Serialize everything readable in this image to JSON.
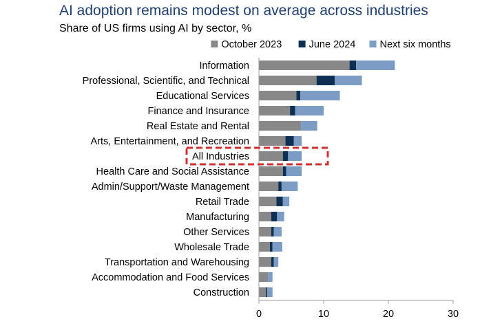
{
  "header": {
    "title": "AI adoption remains modest on average across industries",
    "subtitle": "Share of US firms using AI by sector, %"
  },
  "colors": {
    "title": "#1f3f6e",
    "october_2023": "#888888",
    "june_2024": "#0d2f52",
    "next_six_months": "#7b9dc4",
    "highlight_box": "#d12e2e",
    "axis": "#999999"
  },
  "chart_data": {
    "type": "bar",
    "orientation": "horizontal",
    "stacked": true,
    "title": "AI adoption remains modest on average across industries",
    "subtitle": "Share of US firms using AI by sector, %",
    "xlabel": "",
    "ylabel": "",
    "xlim": [
      0,
      30
    ],
    "xticks": [
      0,
      10,
      20,
      30
    ],
    "grid": false,
    "legend_position": "top-right",
    "highlighted_category": "All Industries",
    "categories": [
      "Information",
      "Professional, Scientific, and Technical",
      "Educational Services",
      "Finance and Insurance",
      "Real Estate and Rental",
      "Arts, Entertainment, and Recreation",
      "All Industries",
      "Health Care and Social Assistance",
      "Admin/Support/Waste Management",
      "Retail Trade",
      "Manufacturing",
      "Other Services",
      "Wholesale Trade",
      "Transportation and Warehousing",
      "Accommodation and Food Services",
      "Construction"
    ],
    "series": [
      {
        "name": "October 2023",
        "color": "#888888",
        "values": [
          14.0,
          8.9,
          5.8,
          4.8,
          6.5,
          4.1,
          3.7,
          3.7,
          3.0,
          2.7,
          1.9,
          1.9,
          1.7,
          1.9,
          1.4,
          1.1
        ]
      },
      {
        "name": "June 2024",
        "color": "#0d2f52",
        "values": [
          1.0,
          2.8,
          0.6,
          0.8,
          0.0,
          1.3,
          0.8,
          0.5,
          0.5,
          1.0,
          0.9,
          0.4,
          0.4,
          0.4,
          0.0,
          0.2
        ]
      },
      {
        "name": "Next six months",
        "color": "#7b9dc4",
        "values": [
          6.0,
          4.2,
          6.1,
          4.4,
          2.5,
          1.2,
          2.1,
          2.4,
          2.5,
          1.0,
          1.1,
          1.2,
          1.5,
          0.7,
          0.7,
          0.8
        ]
      }
    ]
  }
}
